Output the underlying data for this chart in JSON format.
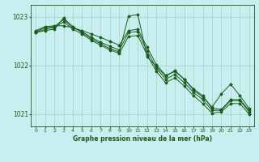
{
  "title": "Graphe pression niveau de la mer (hPa)",
  "background_color": "#c8eef0",
  "plot_bg_color": "#c8eef0",
  "grid_color": "#99ccbb",
  "line_color": "#1a5c1a",
  "x_ticks": [
    0,
    1,
    2,
    3,
    4,
    5,
    6,
    7,
    8,
    9,
    10,
    11,
    12,
    13,
    14,
    15,
    16,
    17,
    18,
    19,
    20,
    21,
    22,
    23
  ],
  "ylim": [
    1020.75,
    1023.25
  ],
  "yticks": [
    1021,
    1022,
    1023
  ],
  "series": [
    [
      1022.72,
      1022.8,
      1022.82,
      1022.82,
      1022.78,
      1022.72,
      1022.65,
      1022.58,
      1022.5,
      1022.42,
      1022.72,
      1022.75,
      1022.38,
      1022.02,
      1021.8,
      1021.88,
      1021.72,
      1021.52,
      1021.38,
      1021.12,
      1021.1,
      1021.3,
      1021.3,
      1021.08
    ],
    [
      1022.7,
      1022.78,
      1022.8,
      1022.95,
      1022.78,
      1022.7,
      1022.58,
      1022.48,
      1022.4,
      1022.32,
      1022.68,
      1022.7,
      1022.3,
      1021.95,
      1021.72,
      1021.82,
      1021.65,
      1021.45,
      1021.3,
      1021.08,
      1021.08,
      1021.28,
      1021.28,
      1021.05
    ],
    [
      1022.68,
      1022.75,
      1022.78,
      1022.9,
      1022.75,
      1022.65,
      1022.52,
      1022.42,
      1022.32,
      1022.25,
      1022.6,
      1022.62,
      1022.22,
      1021.88,
      1021.65,
      1021.75,
      1021.58,
      1021.38,
      1021.22,
      1021.02,
      1021.05,
      1021.22,
      1021.22,
      1021.0
    ],
    [
      1022.68,
      1022.72,
      1022.75,
      1022.98,
      1022.8,
      1022.68,
      1022.55,
      1022.45,
      1022.35,
      1022.28,
      1023.02,
      1023.05,
      1022.18,
      1021.98,
      1021.78,
      1021.9,
      1021.72,
      1021.5,
      1021.35,
      1021.15,
      1021.42,
      1021.62,
      1021.38,
      1021.12
    ]
  ]
}
